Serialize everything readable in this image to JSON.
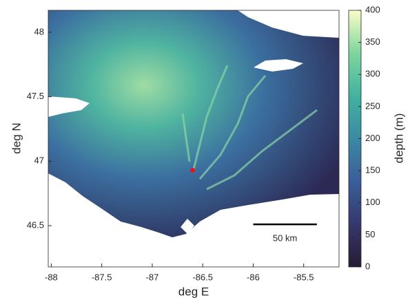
{
  "chart_data": {
    "type": "map",
    "xlabel": "deg E",
    "ylabel": "deg N",
    "xlim": [
      -88.03,
      -85.15
    ],
    "ylim": [
      46.18,
      48.17
    ],
    "xticks": [
      -88,
      -87.5,
      -87,
      -86.5,
      -86,
      -85.5
    ],
    "yticks": [
      46.5,
      47,
      47.5,
      48
    ],
    "colorbar": {
      "label": "depth (m)",
      "lim": [
        0,
        400
      ],
      "ticks": [
        0,
        50,
        100,
        150,
        200,
        250,
        300,
        350,
        400
      ],
      "colors": [
        "#271b33",
        "#35386c",
        "#3b5d9a",
        "#3b8aa3",
        "#43b29f",
        "#7fd59e",
        "#fbfdc8"
      ]
    },
    "points": {
      "x": [
        -86.6
      ],
      "y": [
        46.93
      ],
      "color": "#e8141c"
    },
    "scalebar": {
      "label": "50 km",
      "x": [
        -86,
        -85.37
      ],
      "y": 46.51
    }
  }
}
